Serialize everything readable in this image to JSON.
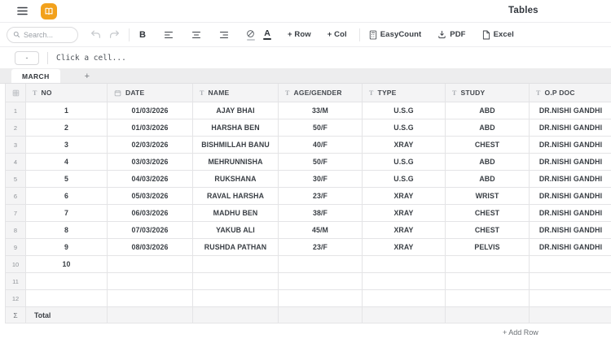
{
  "header": {
    "title": "Tables"
  },
  "toolbar": {
    "search_placeholder": "Search...",
    "bold_label": "B",
    "text_color_label": "A",
    "add_row_label": "+ Row",
    "add_col_label": "+ Col",
    "easycount_label": "EasyCount",
    "pdf_label": "PDF",
    "excel_label": "Excel"
  },
  "formula_bar": {
    "cell_ref": "-",
    "hint": "Click a cell..."
  },
  "sheet_tabs": {
    "active_tab": "MARCH",
    "add_label": "+"
  },
  "table": {
    "columns": [
      {
        "label": "NO",
        "icon": "text-type-icon"
      },
      {
        "label": "DATE",
        "icon": "calendar-icon"
      },
      {
        "label": "NAME",
        "icon": "text-type-icon"
      },
      {
        "label": "AGE/GENDER",
        "icon": "text-type-icon"
      },
      {
        "label": "TYPE",
        "icon": "text-type-icon"
      },
      {
        "label": "STUDY",
        "icon": "text-type-icon"
      },
      {
        "label": "O.P DOC",
        "icon": "text-type-icon"
      }
    ],
    "rows": [
      {
        "n": "1",
        "cells": [
          "1",
          "01/03/2026",
          "AJAY BHAI",
          "33/M",
          "U.S.G",
          "ABD",
          "DR.NISHI GANDHI"
        ]
      },
      {
        "n": "2",
        "cells": [
          "2",
          "01/03/2026",
          "HARSHA BEN",
          "50/F",
          "U.S.G",
          "ABD",
          "DR.NISHI GANDHI"
        ]
      },
      {
        "n": "3",
        "cells": [
          "3",
          "02/03/2026",
          "BISHMILLAH BANU",
          "40/F",
          "XRAY",
          "CHEST",
          "DR.NISHI GANDHI"
        ]
      },
      {
        "n": "4",
        "cells": [
          "4",
          "03/03/2026",
          "MEHRUNNISHA",
          "50/F",
          "U.S.G",
          "ABD",
          "DR.NISHI GANDHI"
        ]
      },
      {
        "n": "5",
        "cells": [
          "5",
          "04/03/2026",
          "RUKSHANA",
          "30/F",
          "U.S.G",
          "ABD",
          "DR.NISHI GANDHI"
        ]
      },
      {
        "n": "6",
        "cells": [
          "6",
          "05/03/2026",
          "RAVAL HARSHA",
          "23/F",
          "XRAY",
          "WRIST",
          "DR.NISHI GANDHI"
        ]
      },
      {
        "n": "7",
        "cells": [
          "7",
          "06/03/2026",
          "MADHU BEN",
          "38/F",
          "XRAY",
          "CHEST",
          "DR.NISHI GANDHI"
        ]
      },
      {
        "n": "8",
        "cells": [
          "8",
          "07/03/2026",
          "YAKUB ALI",
          "45/M",
          "XRAY",
          "CHEST",
          "DR.NISHI GANDHI"
        ]
      },
      {
        "n": "9",
        "cells": [
          "9",
          "08/03/2026",
          "RUSHDA PATHAN",
          "23/F",
          "XRAY",
          "PELVIS",
          "DR.NISHI GANDHI"
        ]
      },
      {
        "n": "10",
        "cells": [
          "10",
          "",
          "",
          "",
          "",
          "",
          ""
        ]
      },
      {
        "n": "11",
        "cells": [
          "",
          "",
          "",
          "",
          "",
          "",
          ""
        ]
      },
      {
        "n": "12",
        "cells": [
          "",
          "",
          "",
          "",
          "",
          "",
          ""
        ]
      }
    ],
    "total_row": {
      "sigma": "Σ",
      "label": "Total"
    }
  },
  "footer": {
    "add_row_label": "+ Add Row"
  },
  "colors": {
    "accent_orange": "#f2a11c",
    "text_dark": "#393e44",
    "grid_border": "#e4e4e6"
  }
}
